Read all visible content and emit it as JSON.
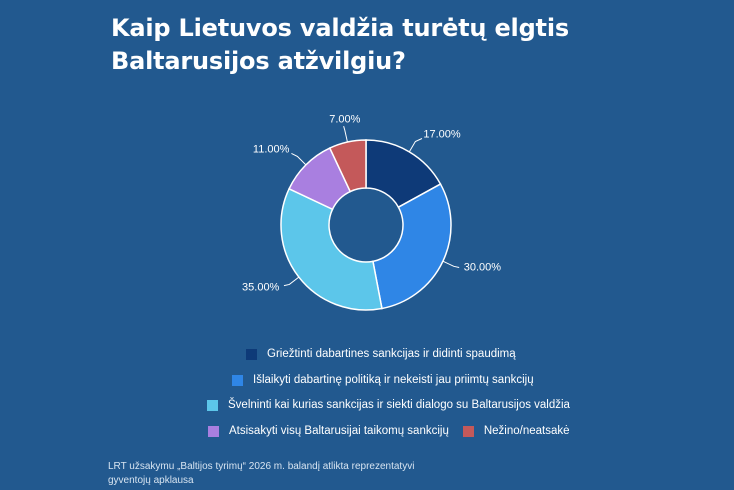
{
  "title_lines": [
    "Kaip Lietuvos valdžia turėtų elgtis",
    "Baltarusijos atžvilgiu?"
  ],
  "chart_data": {
    "type": "pie",
    "variant": "donut",
    "categories": [
      "Griežtinti dabartines sankcijas ir didinti spaudimą",
      "Išlaikyti dabartinę politiką ir nekeisti jau priimtų sankcijų",
      "Švelninti kai kurias sankcijas ir siekti dialogo su Baltarusijos valdžia",
      "Atsisakyti visų Baltarusijai taikomų sankcijų",
      "Nežino/neatsakė"
    ],
    "values": [
      17,
      30,
      35,
      11,
      7
    ],
    "data_labels": [
      "17.00%",
      "30.00%",
      "35.00%",
      "11.00%",
      "7.00%"
    ],
    "colors": [
      "#0e3a78",
      "#2f86e6",
      "#5cc6ea",
      "#a97fe0",
      "#c4595a"
    ],
    "legend_position": "bottom"
  },
  "legend": [
    "Griežtinti dabartines sankcijas ir didinti spaudimą",
    "Išlaikyti dabartinę politiką ir nekeisti jau priimtų sankcijų",
    "Švelninti kai kurias sankcijas ir siekti dialogo su Baltarusijos valdžia",
    "Atsisakyti visų Baltarusijai taikomų sankcijų",
    "Nežino/neatsakė"
  ],
  "source_lines": [
    "LRT užsakymu „Baltijos tyrimų“ 2026 m. balandį atlikta reprezentatyvi",
    "gyventojų apklausa"
  ]
}
